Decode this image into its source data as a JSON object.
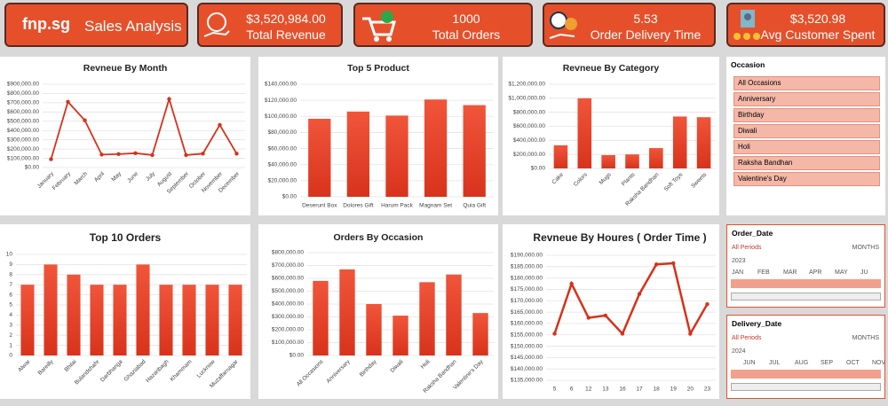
{
  "header": {
    "logo": "fnp.sg",
    "title": "Sales Analysis"
  },
  "kpis": [
    {
      "value": "$3,520,984.00",
      "label": "Total Revenue"
    },
    {
      "value": "1000",
      "label": "Total Orders"
    },
    {
      "value": "5.53",
      "label": "Order Delivery Time"
    },
    {
      "value": "$3,520.98",
      "label": "Avg  Customer  Spent"
    }
  ],
  "slicers": {
    "occasion": {
      "title": "Occasion",
      "items": [
        "All Occasions",
        "Anniversary",
        "Birthday",
        "Diwali",
        "Holi",
        "Raksha Bandhan",
        "Valentine's Day"
      ]
    },
    "order_date": {
      "title": "Order_Date",
      "period": "All Periods",
      "unit": "MONTHS",
      "year": "2023",
      "months": [
        "JAN",
        "FEB",
        "MAR",
        "APR",
        "MAY",
        "JU"
      ]
    },
    "delivery_date": {
      "title": "Delivery_Date",
      "period": "All Periods",
      "unit": "MONTHS",
      "year": "2024",
      "months": [
        "JUN",
        "JUL",
        "AUG",
        "SEP",
        "OCT",
        "NOV"
      ]
    }
  },
  "chart_data": [
    {
      "type": "line",
      "title": "Revneue By Month",
      "color": "#d7311b",
      "grid": true,
      "categories": [
        "January",
        "February",
        "March",
        "April",
        "May",
        "June",
        "July",
        "August",
        "September",
        "October",
        "November",
        "December"
      ],
      "values": [
        90000,
        710000,
        510000,
        140000,
        145000,
        155000,
        135000,
        740000,
        135000,
        150000,
        460000,
        150000
      ],
      "ylim": [
        0,
        900000
      ],
      "yticks": [
        {
          "value": 0,
          "label": "$0.00"
        },
        {
          "value": 100000,
          "label": "$100,000.00"
        },
        {
          "value": 200000,
          "label": "$200,000.00"
        },
        {
          "value": 300000,
          "label": "$300,000.00"
        },
        {
          "value": 400000,
          "label": "$400,000.00"
        },
        {
          "value": 500000,
          "label": "$500,000.00"
        },
        {
          "value": 600000,
          "label": "$600,000.00"
        },
        {
          "value": 700000,
          "label": "$700,000.00"
        },
        {
          "value": 800000,
          "label": "$800,000.00"
        },
        {
          "value": 900000,
          "label": "$900,000.00"
        }
      ]
    },
    {
      "type": "bar",
      "title": "Top 5 Product",
      "color": "#e8432a",
      "grid": true,
      "categories": [
        "Deserunt Box",
        "Dolores Gift",
        "Harum Pack",
        "Magnam Set",
        "Quia Gift"
      ],
      "values": [
        97000,
        106000,
        101000,
        121000,
        114000
      ],
      "ylim": [
        0,
        140000
      ],
      "yticks": [
        {
          "value": 0,
          "label": "$0.00"
        },
        {
          "value": 20000,
          "label": "$20,000.00"
        },
        {
          "value": 40000,
          "label": "$40,000.00"
        },
        {
          "value": 60000,
          "label": "$60,000.00"
        },
        {
          "value": 80000,
          "label": "$80,000.00"
        },
        {
          "value": 100000,
          "label": "$100,000.00"
        },
        {
          "value": 120000,
          "label": "$120,000.00"
        },
        {
          "value": 140000,
          "label": "$140,000.00"
        }
      ]
    },
    {
      "type": "bar",
      "title": "Revneue By Category",
      "color": "#e8432a",
      "grid": true,
      "categories": [
        "Cake",
        "Colors",
        "Mugs",
        "Plants",
        "Raksha Bandhan",
        "Soft Toys",
        "Sweets"
      ],
      "values": [
        330000,
        1000000,
        190000,
        200000,
        290000,
        740000,
        730000
      ],
      "ylim": [
        0,
        1200000
      ],
      "yticks": [
        {
          "value": 0,
          "label": "$0.00"
        },
        {
          "value": 200000,
          "label": "$200,000.00"
        },
        {
          "value": 400000,
          "label": "$400,000.00"
        },
        {
          "value": 600000,
          "label": "$600,000.00"
        },
        {
          "value": 800000,
          "label": "$800,000.00"
        },
        {
          "value": 1000000,
          "label": "$1,000,000.00"
        },
        {
          "value": 1200000,
          "label": "$1,200,000.00"
        }
      ]
    },
    {
      "type": "bar",
      "title": "Top 10 Orders",
      "color": "#e8432a",
      "grid": true,
      "categories": [
        "Alwar",
        "Bareilly",
        "Bhilai",
        "Bulandshahr",
        "Darbhanga",
        "Ghaziabad",
        "Hazaribagh",
        "Khammam",
        "Lucknow",
        "Muzaffarnagar"
      ],
      "values": [
        7,
        9,
        8,
        7,
        7,
        9,
        7,
        7,
        7,
        7
      ],
      "ylim": [
        0,
        10
      ],
      "yticks": [
        0,
        1,
        2,
        3,
        4,
        5,
        6,
        7,
        8,
        9,
        10
      ]
    },
    {
      "type": "bar",
      "title": "Orders By Occasion",
      "color": "#e8432a",
      "grid": true,
      "categories": [
        "All Occasions",
        "Anniversary",
        "Birthday",
        "Diwali",
        "Holi",
        "Raksha Bandhan",
        "Valentine's Day"
      ],
      "values": [
        580000,
        670000,
        400000,
        310000,
        570000,
        630000,
        330000
      ],
      "ylim": [
        0,
        800000
      ],
      "yticks": [
        {
          "value": 0,
          "label": "$0.00"
        },
        {
          "value": 100000,
          "label": "$100,000.00"
        },
        {
          "value": 200000,
          "label": "$200,000.00"
        },
        {
          "value": 300000,
          "label": "$300,000.00"
        },
        {
          "value": 400000,
          "label": "$400,000.00"
        },
        {
          "value": 500000,
          "label": "$500,000.00"
        },
        {
          "value": 600000,
          "label": "$600,000.00"
        },
        {
          "value": 700000,
          "label": "$700,000.00"
        },
        {
          "value": 800000,
          "label": "$800,000.00"
        }
      ]
    },
    {
      "type": "line",
      "title": "Revneue By Houres ( Order Time )",
      "color": "#d7311b",
      "grid": true,
      "categories": [
        "5",
        "6",
        "12",
        "13",
        "16",
        "17",
        "18",
        "19",
        "20",
        "23"
      ],
      "values": [
        155500,
        177500,
        162500,
        163500,
        155500,
        173000,
        186000,
        186500,
        155500,
        168500
      ],
      "ylim": [
        135000,
        190000
      ],
      "yticks": [
        {
          "value": 135000,
          "label": "$135,000.00"
        },
        {
          "value": 140000,
          "label": "$140,000.00"
        },
        {
          "value": 145000,
          "label": "$145,000.00"
        },
        {
          "value": 150000,
          "label": "$150,000.00"
        },
        {
          "value": 155000,
          "label": "$155,000.00"
        },
        {
          "value": 160000,
          "label": "$160,000.00"
        },
        {
          "value": 165000,
          "label": "$165,000.00"
        },
        {
          "value": 170000,
          "label": "$170,000.00"
        },
        {
          "value": 175000,
          "label": "$175,000.00"
        },
        {
          "value": 180000,
          "label": "$180,000.00"
        },
        {
          "value": 185000,
          "label": "$185,000.00"
        },
        {
          "value": 190000,
          "label": "$190,000.00"
        }
      ]
    }
  ]
}
